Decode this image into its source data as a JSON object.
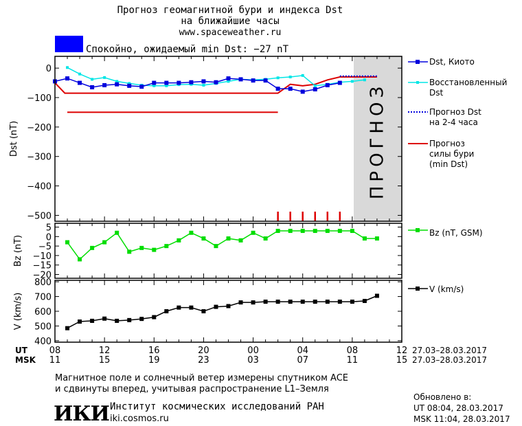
{
  "header": {
    "title_line1": "Прогноз геомагнитной бури и индекса Dst",
    "title_line2": "на ближайшие часы",
    "site": "www.spaceweather.ru",
    "status_text": "Спокойно, ожидаемый min Dst: −27 nT",
    "status_color": "#0000ff"
  },
  "legend": {
    "dst_kyoto": "Dst, Киото",
    "dst_restored_1": "Восстановленный",
    "dst_restored_2": "Dst",
    "forecast_dst_1": "Прогноз Dst",
    "forecast_dst_2": "на 2-4 часа",
    "storm_forecast_1": "Прогноз",
    "storm_forecast_2": "силы бури",
    "storm_forecast_3": "(min Dst)",
    "bz": "Bz (nT, GSM)",
    "v": "V (km/s)"
  },
  "forecast_zone_label": "ПРОГНОЗ",
  "axis_rows": {
    "ut_label": "UT",
    "msk_label": "MSK",
    "ut_ticks": [
      "08",
      "12",
      "16",
      "20",
      "00",
      "04",
      "08",
      "12"
    ],
    "msk_ticks": [
      "11",
      "15",
      "19",
      "23",
      "03",
      "07",
      "11",
      "15"
    ],
    "ut_range": "27.03–28.03.2017",
    "msk_range": "27.03–28.03.2017"
  },
  "footer": {
    "note_line1": "Магнитное поле и солнечный ветер измерены спутником ACE",
    "note_line2": "и сдвинуты вперед, учитывая распространение L1–Земля",
    "logo_text": "ИКИ",
    "institute": "Институт космических исследований РАН",
    "institute_site": "iki.cosmos.ru",
    "updated_label": "Обновлено в:",
    "updated_ut": "UT   08:04, 28.03.2017",
    "updated_msk": "MSK 11:04, 28.03.2017"
  },
  "colors": {
    "dst_kyoto": "#0000dd",
    "dst_restored": "#00e6e6",
    "storm": "#dd0000",
    "bz": "#00dd00",
    "v": "#000000",
    "forecast_bg": "#d9d9d9"
  },
  "chart_data": [
    {
      "type": "line",
      "panel": "dst",
      "ylabel": "Dst (nT)",
      "ylim": [
        -520,
        40
      ],
      "yticks": [
        0,
        -100,
        -200,
        -300,
        -400,
        -500
      ],
      "xlim": [
        8,
        36
      ],
      "forecast_from": 31,
      "series": [
        {
          "name": "Dst, Киото",
          "x": [
            8,
            9,
            10,
            11,
            12,
            13,
            14,
            15,
            16,
            17,
            18,
            19,
            20,
            21,
            22,
            23,
            24,
            25,
            26,
            27,
            28,
            29,
            30,
            31
          ],
          "y": [
            -45,
            -35,
            -50,
            -65,
            -58,
            -55,
            -60,
            -63,
            -50,
            -50,
            -50,
            -48,
            -45,
            -48,
            -35,
            -38,
            -42,
            -42,
            -70,
            -70,
            -80,
            -72,
            -58,
            -50
          ]
        },
        {
          "name": "Восстановленный Dst",
          "x": [
            9,
            10,
            11,
            12,
            13,
            14,
            15,
            16,
            17,
            18,
            19,
            20,
            21,
            22,
            23,
            24,
            25,
            26,
            27,
            28,
            29,
            30,
            31,
            32,
            33
          ],
          "y": [
            2,
            -20,
            -38,
            -32,
            -45,
            -52,
            -58,
            -60,
            -60,
            -56,
            -55,
            -58,
            -52,
            -45,
            -38,
            -40,
            -38,
            -33,
            -30,
            -25,
            -60,
            -55,
            -48,
            -45,
            -40
          ]
        },
        {
          "name": "Прогноз Dst на 2-4 часа",
          "x": [
            31,
            32,
            33,
            34
          ],
          "y": [
            -27,
            -27,
            -27,
            -27
          ]
        },
        {
          "name": "Прогноз силы бури (min Dst)",
          "x": [
            8,
            8.8,
            9,
            10,
            11,
            12,
            13,
            14,
            15,
            16,
            17,
            18,
            19,
            20,
            21,
            22,
            23,
            24,
            25,
            26,
            27,
            28,
            29,
            30,
            31,
            32,
            33,
            34
          ],
          "y": [
            -50,
            -85,
            -85,
            -85,
            -85,
            -85,
            -85,
            -85,
            -85,
            -85,
            -85,
            -85,
            -85,
            -85,
            -85,
            -85,
            -85,
            -85,
            -85,
            -85,
            -55,
            -60,
            -55,
            -40,
            -30,
            -30,
            -30,
            -30
          ]
        },
        {
          "name": "storm level",
          "x": [
            9,
            26
          ],
          "y": [
            -150,
            -150
          ]
        }
      ],
      "storm_ticks_x": [
        26,
        27,
        28,
        29,
        30,
        31
      ]
    },
    {
      "type": "line",
      "panel": "bz",
      "ylabel": "Bz (nT)",
      "ylim": [
        -22,
        7
      ],
      "yticks": [
        5,
        0,
        -5,
        -10,
        -15,
        -20
      ],
      "series": [
        {
          "name": "Bz (nT, GSM)",
          "x": [
            9,
            10,
            11,
            12,
            13,
            14,
            15,
            16,
            17,
            18,
            19,
            20,
            21,
            22,
            23,
            24,
            25,
            26,
            27,
            28,
            29,
            30,
            31,
            32,
            33,
            34
          ],
          "y": [
            -3,
            -12,
            -6,
            -3,
            2,
            -8,
            -6,
            -7,
            -5,
            -2,
            2,
            -1,
            -5,
            -1,
            -2,
            2,
            -1,
            3,
            3,
            3,
            3,
            3,
            3,
            3,
            -1,
            -1
          ]
        }
      ]
    },
    {
      "type": "line",
      "panel": "v",
      "ylabel": "V (km/s)",
      "ylim": [
        390,
        810
      ],
      "yticks": [
        800,
        700,
        600,
        500,
        400
      ],
      "series": [
        {
          "name": "V (km/s)",
          "x": [
            9,
            10,
            11,
            12,
            13,
            14,
            15,
            16,
            17,
            18,
            19,
            20,
            21,
            22,
            23,
            24,
            25,
            26,
            27,
            28,
            29,
            30,
            31,
            32,
            33,
            34
          ],
          "y": [
            485,
            530,
            535,
            550,
            535,
            540,
            548,
            560,
            600,
            625,
            625,
            600,
            630,
            635,
            660,
            660,
            665,
            665,
            665,
            665,
            665,
            665,
            665,
            665,
            670,
            705
          ]
        }
      ]
    }
  ]
}
